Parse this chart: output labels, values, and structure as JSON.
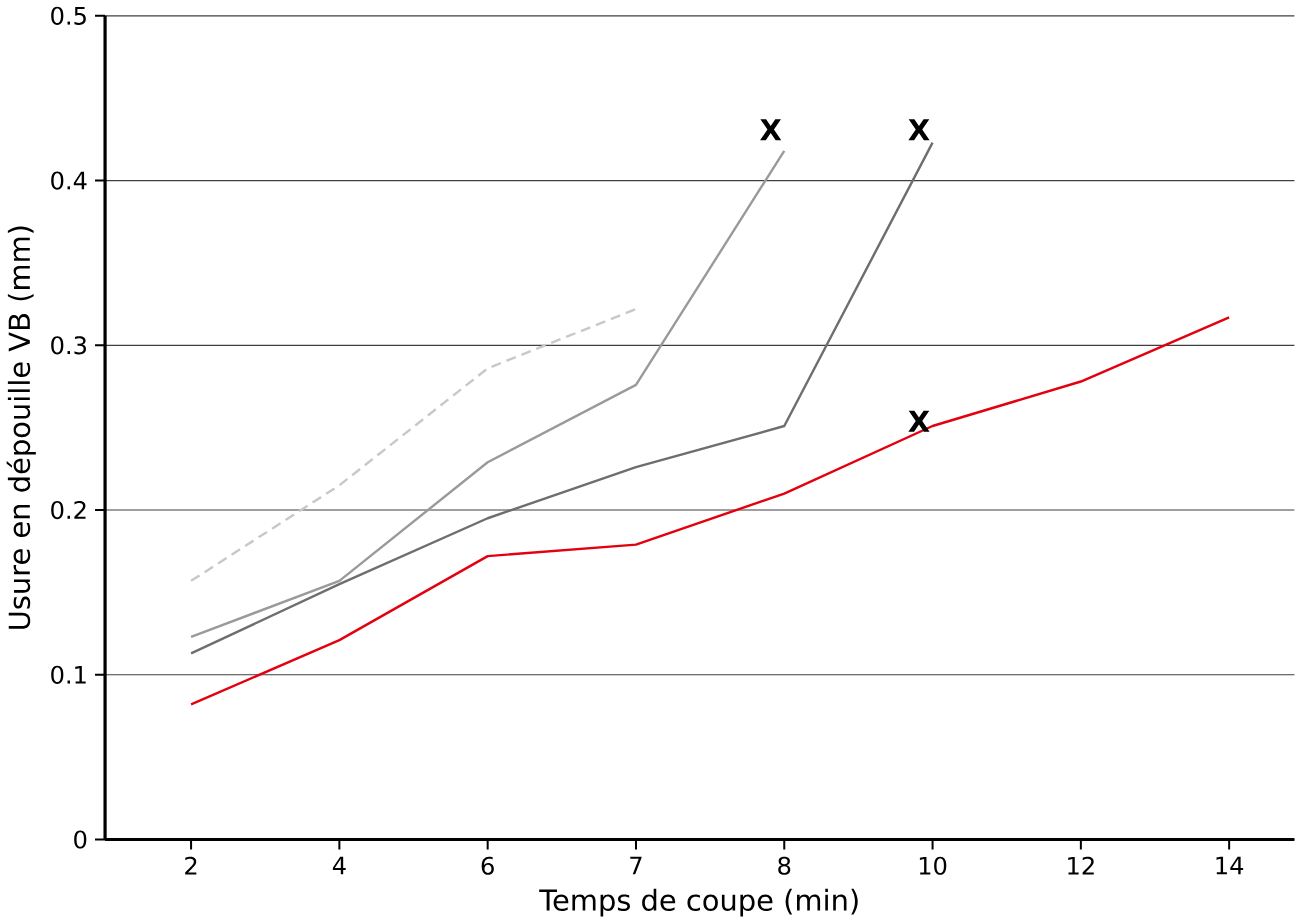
{
  "chart_data": {
    "type": "line",
    "xlabel": "Temps de coupe (min)",
    "ylabel": "Usure en dépouille VB (mm)",
    "categories": [
      "2",
      "4",
      "6",
      "7",
      "8",
      "10",
      "12",
      "14"
    ],
    "series": [
      {
        "color": "#c8c8c8",
        "line_style": "dashed",
        "values": [
          0.157,
          0.215,
          0.286,
          0.322,
          null,
          null,
          null,
          null
        ]
      },
      {
        "color": "#9a9a9a",
        "line_style": "solid",
        "values": [
          0.123,
          0.157,
          0.229,
          0.276,
          0.418,
          null,
          null,
          null
        ]
      },
      {
        "color": "#6e6e6e",
        "line_style": "solid",
        "values": [
          0.113,
          0.155,
          0.195,
          0.226,
          0.251,
          0.423,
          null,
          null
        ]
      },
      {
        "color": "#e3000f",
        "line_style": "solid",
        "values": [
          0.082,
          0.121,
          0.172,
          0.179,
          0.21,
          0.251,
          0.278,
          0.317
        ]
      }
    ],
    "annotations": [
      {
        "text": "X",
        "x": "8",
        "y": 0.423
      },
      {
        "text": "X",
        "x": "10",
        "y": 0.423
      },
      {
        "text": "X",
        "x": "10",
        "y": 0.246
      }
    ],
    "ylim": [
      0,
      0.5
    ],
    "yticks": [
      0,
      0.1,
      0.2,
      0.3,
      0.4,
      0.5
    ],
    "grid": "y",
    "marker": "none"
  }
}
